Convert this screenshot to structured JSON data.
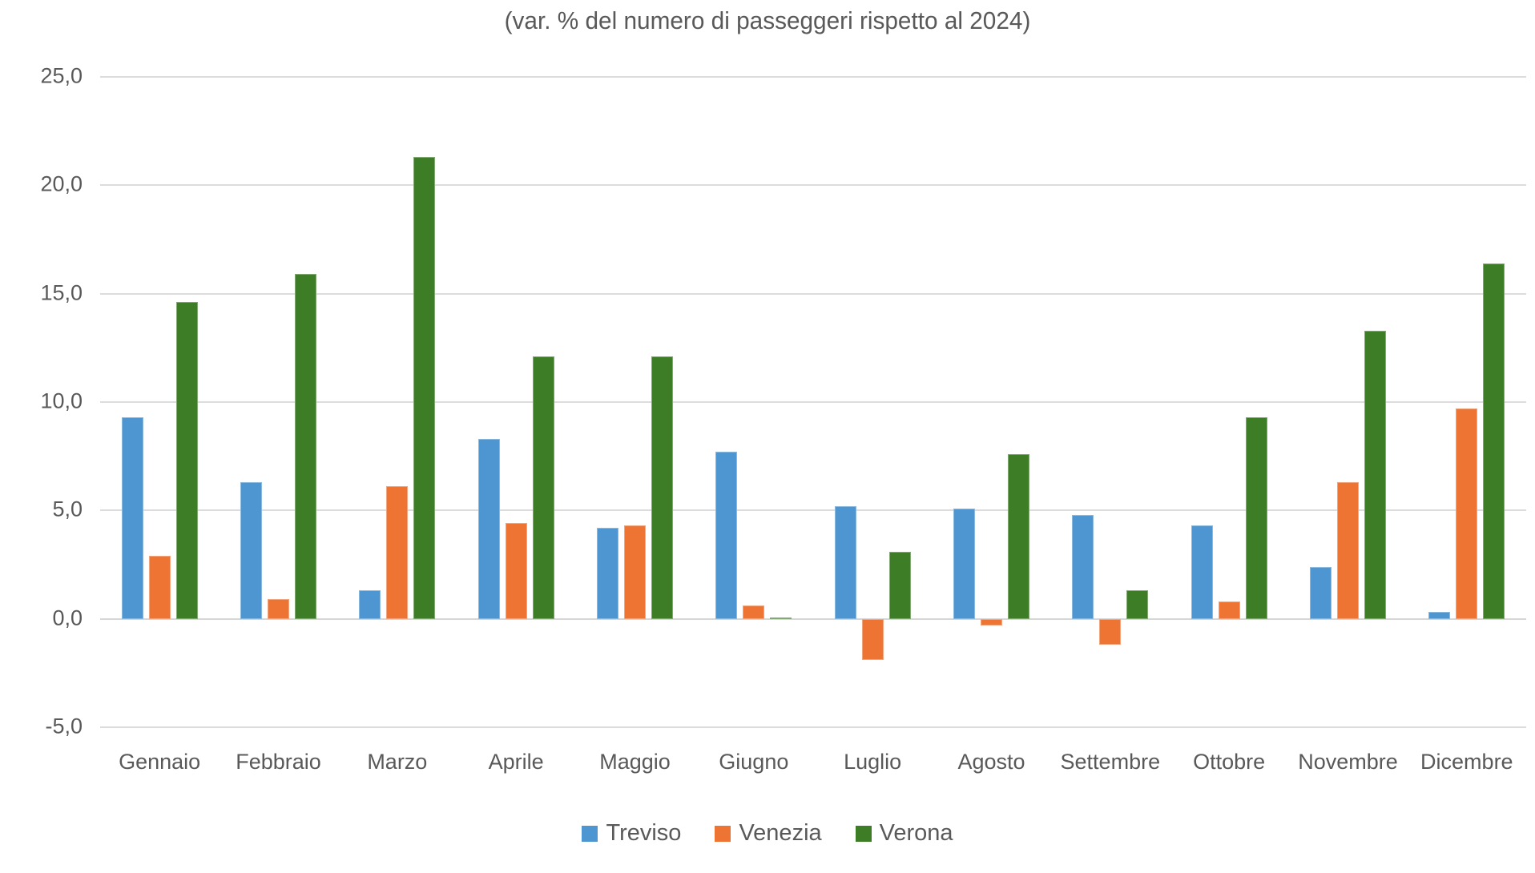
{
  "colors": {
    "treviso_blue": "#4E96D2",
    "venezia_orange": "#ED7433",
    "verona_green": "#3C7D26",
    "text_gray": "#595959",
    "gridline_gray": "#DCDCDC"
  },
  "chart_data": {
    "type": "bar",
    "title": "(var. % del numero di passeggeri rispetto al 2024)",
    "xlabel": "",
    "ylabel": "",
    "ylim": [
      -5,
      25
    ],
    "ytick_step": 5,
    "ytick_labels": [
      "25,0",
      "20,0",
      "15,0",
      "10,0",
      "5,0",
      "0,0",
      "-5,0"
    ],
    "grid": true,
    "legend_position": "bottom",
    "categories": [
      "Gennaio",
      "Febbraio",
      "Marzo",
      "Aprile",
      "Maggio",
      "Giugno",
      "Luglio",
      "Agosto",
      "Settembre",
      "Ottobre",
      "Novembre",
      "Dicembre"
    ],
    "series": [
      {
        "name": "Treviso",
        "color": "#4E96D2",
        "values": [
          9.3,
          6.3,
          1.3,
          8.3,
          4.2,
          7.7,
          5.2,
          5.1,
          4.8,
          4.3,
          2.4,
          0.3
        ]
      },
      {
        "name": "Venezia",
        "color": "#ED7433",
        "values": [
          2.9,
          0.9,
          6.1,
          4.4,
          4.3,
          0.6,
          -1.9,
          -0.3,
          -1.2,
          0.8,
          6.3,
          9.7
        ]
      },
      {
        "name": "Verona",
        "color": "#3C7D26",
        "values": [
          14.6,
          15.9,
          21.3,
          12.1,
          12.1,
          0.05,
          3.1,
          7.6,
          1.3,
          9.3,
          13.3,
          16.4
        ]
      }
    ]
  }
}
